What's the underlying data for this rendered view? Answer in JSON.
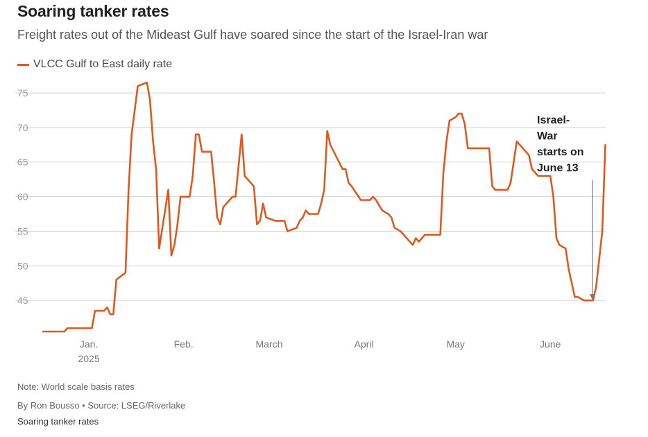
{
  "header": {
    "title": "Soaring tanker rates",
    "subtitle": "Freight rates out of the Mideast Gulf have soared since the start of the Israel-Iran war"
  },
  "legend": {
    "label": "VLCC Gulf to East daily rate"
  },
  "footer": {
    "note": "Note: World scale basis rates",
    "byline": "By Ron Bousso • Source: LSEG/Riverlake",
    "chart_name": "Soaring tanker rates"
  },
  "colors": {
    "series": "#e1581c",
    "grid": "#d4d4d4",
    "annotation_arrow": "#777777"
  },
  "chart_data": {
    "type": "line",
    "title": "Soaring tanker rates",
    "subtitle": "Freight rates out of the Mideast Gulf have soared since the start of the Israel-Iran war",
    "xlabel": "",
    "ylabel": "",
    "ylim": [
      40,
      77
    ],
    "y_ticks": [
      45,
      50,
      55,
      60,
      65,
      70,
      75
    ],
    "grid": "horizontal",
    "legend_position": "top-left",
    "x_ticks": [
      {
        "date": "2025-01-01",
        "label": "Jan.",
        "sublabel": "2025"
      },
      {
        "date": "2025-02-01",
        "label": "Feb."
      },
      {
        "date": "2025-03-01",
        "label": "March"
      },
      {
        "date": "2025-04-01",
        "label": "April"
      },
      {
        "date": "2025-05-01",
        "label": "May"
      },
      {
        "date": "2025-06-01",
        "label": "June"
      }
    ],
    "series": [
      {
        "name": "VLCC Gulf to East daily rate",
        "color": "#e1581c",
        "points": [
          [
            "2024-12-17",
            40.5
          ],
          [
            "2024-12-24",
            40.5
          ],
          [
            "2024-12-25",
            41
          ],
          [
            "2025-01-02",
            41
          ],
          [
            "2025-01-03",
            43.5
          ],
          [
            "2025-01-06",
            43.5
          ],
          [
            "2025-01-07",
            44
          ],
          [
            "2025-01-08",
            43
          ],
          [
            "2025-01-09",
            43
          ],
          [
            "2025-01-10",
            48
          ],
          [
            "2025-01-13",
            49
          ],
          [
            "2025-01-14",
            61
          ],
          [
            "2025-01-15",
            69
          ],
          [
            "2025-01-17",
            76
          ],
          [
            "2025-01-20",
            76.5
          ],
          [
            "2025-01-21",
            74
          ],
          [
            "2025-01-22",
            68
          ],
          [
            "2025-01-23",
            64
          ],
          [
            "2025-01-24",
            52.5
          ],
          [
            "2025-01-27",
            61
          ],
          [
            "2025-01-28",
            51.5
          ],
          [
            "2025-01-29",
            53
          ],
          [
            "2025-01-30",
            56
          ],
          [
            "2025-01-31",
            60
          ],
          [
            "2025-02-03",
            60
          ],
          [
            "2025-02-04",
            63
          ],
          [
            "2025-02-05",
            69
          ],
          [
            "2025-02-06",
            69
          ],
          [
            "2025-02-07",
            66.5
          ],
          [
            "2025-02-10",
            66.5
          ],
          [
            "2025-02-11",
            62
          ],
          [
            "2025-02-12",
            57
          ],
          [
            "2025-02-13",
            56
          ],
          [
            "2025-02-14",
            58.5
          ],
          [
            "2025-02-17",
            60
          ],
          [
            "2025-02-18",
            60
          ],
          [
            "2025-02-20",
            69
          ],
          [
            "2025-02-21",
            63
          ],
          [
            "2025-02-24",
            61.5
          ],
          [
            "2025-02-25",
            56
          ],
          [
            "2025-02-26",
            56.5
          ],
          [
            "2025-02-27",
            59
          ],
          [
            "2025-02-28",
            57
          ],
          [
            "2025-03-03",
            56.5
          ],
          [
            "2025-03-06",
            56.5
          ],
          [
            "2025-03-07",
            55
          ],
          [
            "2025-03-10",
            55.5
          ],
          [
            "2025-03-11",
            56.5
          ],
          [
            "2025-03-12",
            57
          ],
          [
            "2025-03-13",
            58
          ],
          [
            "2025-03-14",
            57.5
          ],
          [
            "2025-03-17",
            57.5
          ],
          [
            "2025-03-18",
            59
          ],
          [
            "2025-03-19",
            61
          ],
          [
            "2025-03-20",
            69.5
          ],
          [
            "2025-03-21",
            67.5
          ],
          [
            "2025-03-25",
            64
          ],
          [
            "2025-03-26",
            64
          ],
          [
            "2025-03-27",
            62
          ],
          [
            "2025-03-28",
            61.5
          ],
          [
            "2025-03-31",
            59.5
          ],
          [
            "2025-04-03",
            59.5
          ],
          [
            "2025-04-04",
            60
          ],
          [
            "2025-04-05",
            59.5
          ],
          [
            "2025-04-07",
            58
          ],
          [
            "2025-04-09",
            57.5
          ],
          [
            "2025-04-10",
            57
          ],
          [
            "2025-04-11",
            55.5
          ],
          [
            "2025-04-13",
            55
          ],
          [
            "2025-04-17",
            53
          ],
          [
            "2025-04-18",
            54
          ],
          [
            "2025-04-19",
            53.5
          ],
          [
            "2025-04-21",
            54.5
          ],
          [
            "2025-04-26",
            54.5
          ],
          [
            "2025-04-27",
            63.5
          ],
          [
            "2025-04-28",
            68
          ],
          [
            "2025-04-29",
            71
          ],
          [
            "2025-05-01",
            71.5
          ],
          [
            "2025-05-02",
            72
          ],
          [
            "2025-05-03",
            72
          ],
          [
            "2025-05-04",
            70.5
          ],
          [
            "2025-05-05",
            67
          ],
          [
            "2025-05-12",
            67
          ],
          [
            "2025-05-13",
            61.5
          ],
          [
            "2025-05-14",
            61
          ],
          [
            "2025-05-18",
            61
          ],
          [
            "2025-05-19",
            62
          ],
          [
            "2025-05-20",
            65
          ],
          [
            "2025-05-21",
            68
          ],
          [
            "2025-05-22",
            67.5
          ],
          [
            "2025-05-25",
            66
          ],
          [
            "2025-05-26",
            64
          ],
          [
            "2025-05-28",
            63
          ],
          [
            "2025-06-01",
            63
          ],
          [
            "2025-06-02",
            60
          ],
          [
            "2025-06-03",
            54
          ],
          [
            "2025-06-04",
            53
          ],
          [
            "2025-06-06",
            52.5
          ],
          [
            "2025-06-07",
            49.5
          ],
          [
            "2025-06-09",
            45.5
          ],
          [
            "2025-06-10",
            45.5
          ],
          [
            "2025-06-12",
            45
          ],
          [
            "2025-06-15",
            45
          ],
          [
            "2025-06-16",
            47
          ],
          [
            "2025-06-17",
            51
          ],
          [
            "2025-06-18",
            55
          ],
          [
            "2025-06-19",
            67.5
          ]
        ]
      }
    ],
    "annotations": [
      {
        "date": "2025-06-15",
        "value": 45,
        "lines": [
          "Israel-",
          "War",
          "starts on",
          "June 13"
        ]
      }
    ]
  }
}
